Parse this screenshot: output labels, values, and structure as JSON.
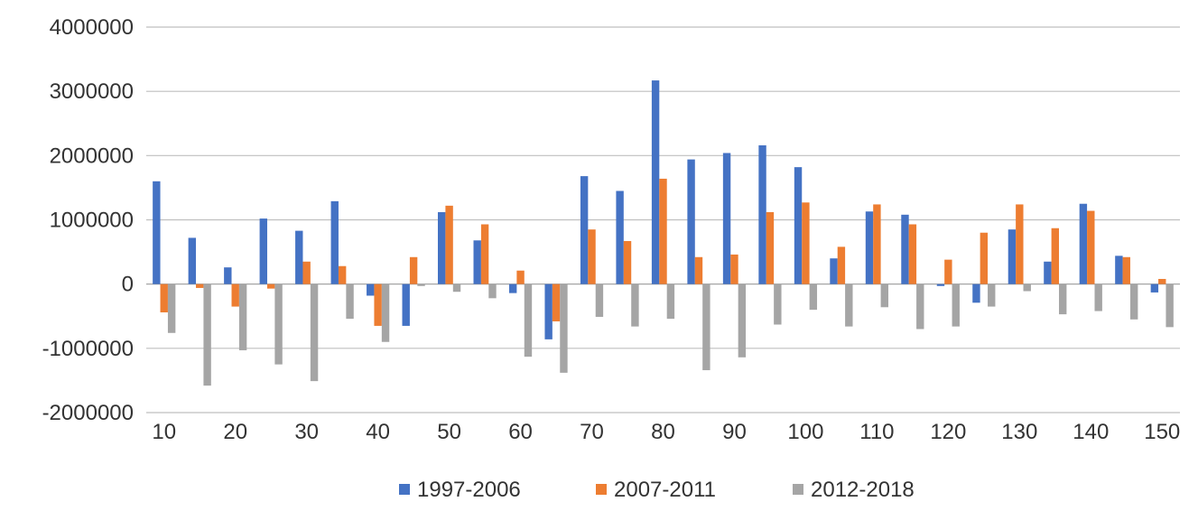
{
  "chart_data": {
    "type": "bar",
    "title": "",
    "xlabel": "",
    "ylabel": "",
    "ylim": [
      -2000000,
      4000000
    ],
    "yticks": [
      4000000,
      3000000,
      2000000,
      1000000,
      0,
      -1000000,
      -2000000
    ],
    "y_tick_labels": [
      "4000000",
      "3000000",
      "2000000",
      "1000000",
      "0",
      "-1000000",
      "-2000000"
    ],
    "grid": true,
    "legend_position": "bottom",
    "categories": [
      10,
      15,
      20,
      25,
      30,
      35,
      40,
      45,
      50,
      55,
      60,
      65,
      70,
      75,
      80,
      85,
      90,
      95,
      100,
      105,
      110,
      115,
      120,
      125,
      130,
      135,
      140,
      145,
      150
    ],
    "x_tick_labels": [
      "10",
      "20",
      "30",
      "40",
      "50",
      "60",
      "70",
      "80",
      "90",
      "100",
      "110",
      "120",
      "130",
      "140",
      "150"
    ],
    "series": [
      {
        "name": "1997-2006",
        "color": "#4472C4",
        "values": [
          1600000,
          720000,
          260000,
          1020000,
          830000,
          1290000,
          -180000,
          -650000,
          1120000,
          680000,
          -140000,
          -860000,
          1680000,
          1450000,
          3170000,
          1940000,
          2040000,
          2160000,
          1820000,
          400000,
          1130000,
          1080000,
          -30000,
          -290000,
          850000,
          350000,
          1250000,
          440000,
          -130000
        ]
      },
      {
        "name": "2007-2011",
        "color": "#ED7D31",
        "values": [
          -440000,
          -60000,
          -350000,
          -70000,
          350000,
          280000,
          -650000,
          420000,
          1220000,
          930000,
          210000,
          -580000,
          850000,
          670000,
          1640000,
          420000,
          460000,
          1120000,
          1270000,
          580000,
          1240000,
          930000,
          380000,
          800000,
          1240000,
          870000,
          1140000,
          420000,
          80000
        ]
      },
      {
        "name": "2012-2018",
        "color": "#A5A5A5",
        "values": [
          -760000,
          -1580000,
          -1030000,
          -1250000,
          -1510000,
          -540000,
          -900000,
          -30000,
          -120000,
          -220000,
          -1130000,
          -1380000,
          -510000,
          -660000,
          -540000,
          -1340000,
          -1140000,
          -630000,
          -400000,
          -660000,
          -360000,
          -700000,
          -660000,
          -350000,
          -110000,
          -470000,
          -420000,
          -550000,
          -670000
        ]
      }
    ]
  }
}
